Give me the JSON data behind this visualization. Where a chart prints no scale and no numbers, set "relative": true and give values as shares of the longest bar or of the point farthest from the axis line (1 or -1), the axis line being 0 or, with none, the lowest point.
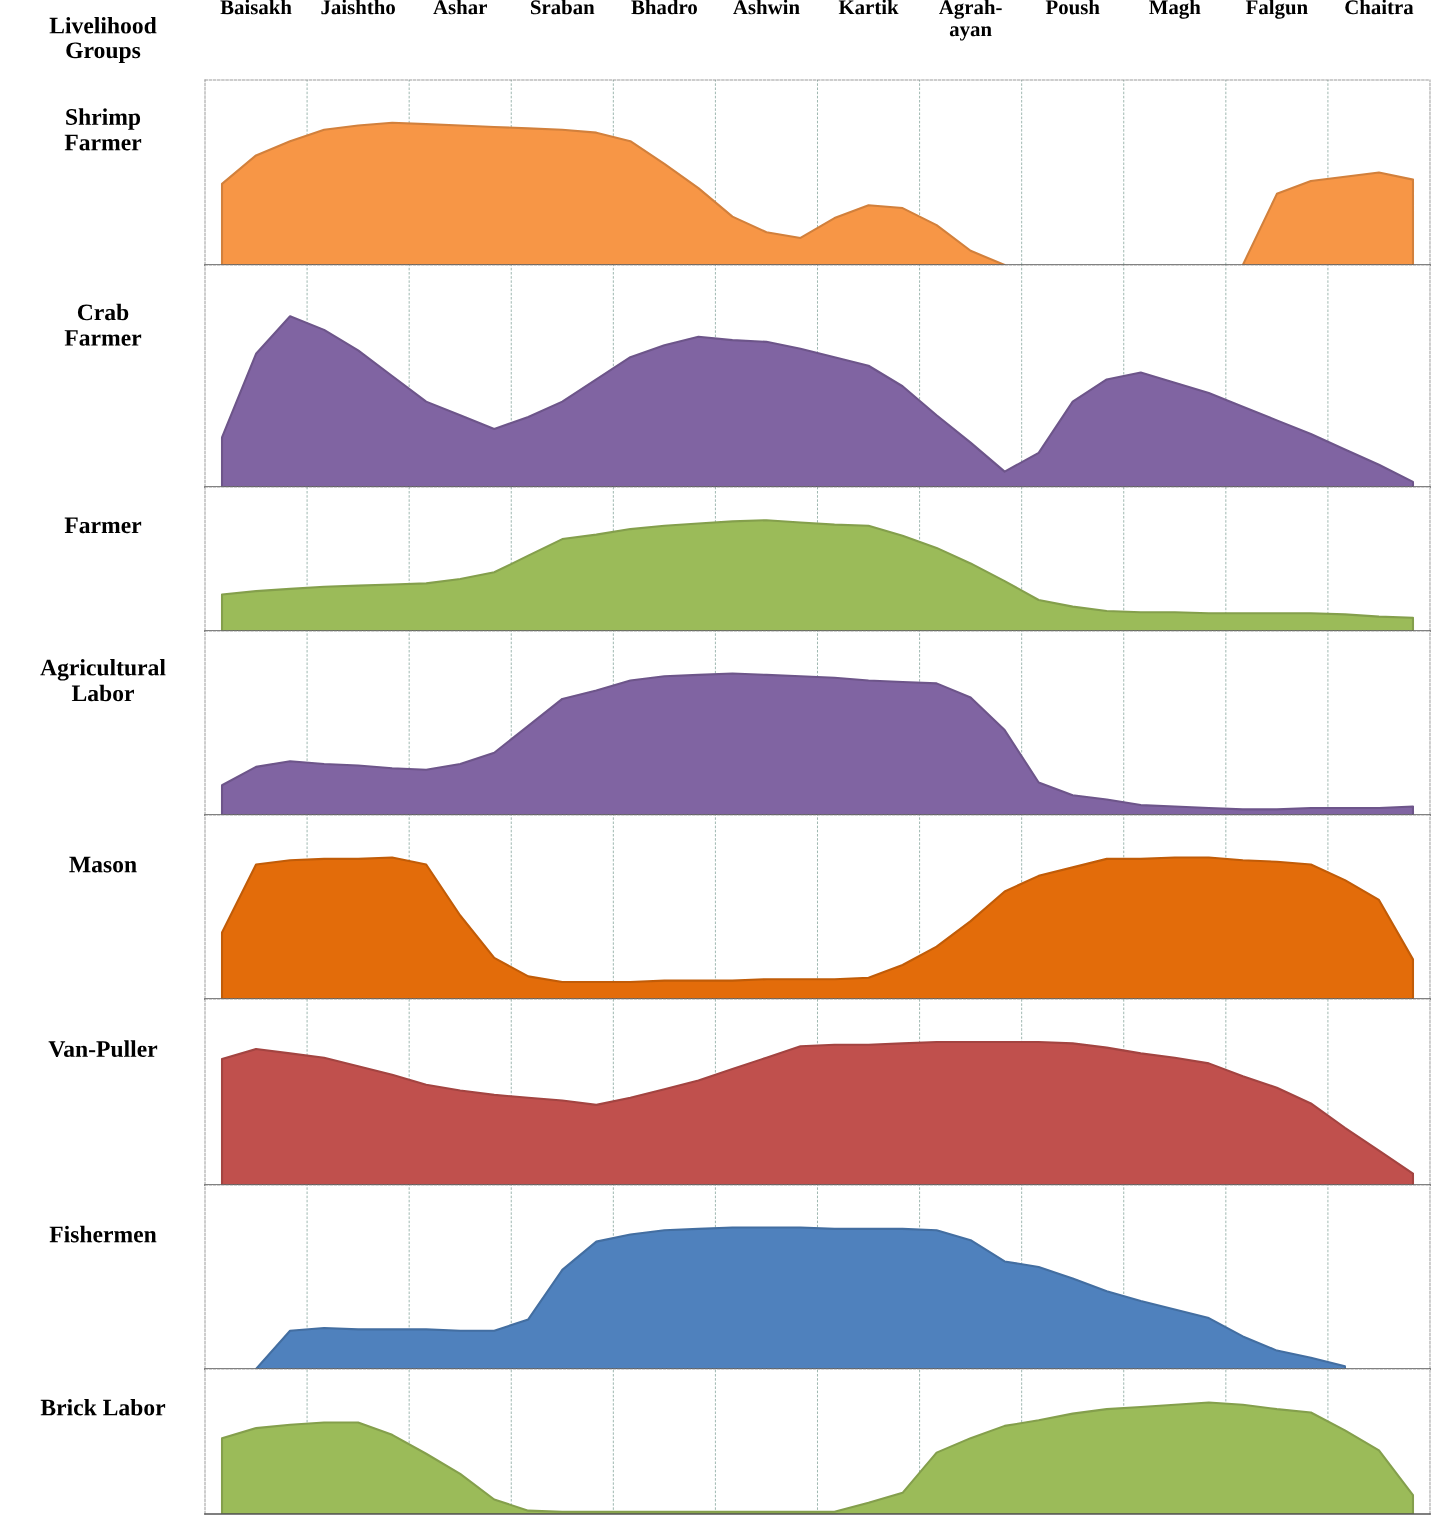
{
  "chart_data": [
    {
      "type": "area",
      "title": "Shrimp\nFarmer",
      "annotations": [
        "Livelihood\nGroups"
      ],
      "relative": true,
      "grid": "x",
      "tick_labels": "x",
      "categories": [
        null,
        "Baisakh",
        null,
        null,
        "Jaishtho",
        null,
        null,
        "Ashar",
        null,
        null,
        "Sraban",
        null,
        null,
        "Bhadro",
        null,
        null,
        "Ashwin",
        null,
        null,
        "Kartik",
        null,
        null,
        "Agrah-\nayan",
        null,
        null,
        "Poush",
        null,
        null,
        "Magh",
        null,
        null,
        "Falgun",
        null,
        null,
        "Chaitra",
        null
      ],
      "series": [
        {
          "color": "#f79646",
          "values": [
            0.57,
            0.77,
            0.87,
            0.95,
            0.98,
            1,
            0.99,
            0.98,
            0.97,
            0.96,
            0.95,
            0.93,
            0.87,
            0.71,
            0.54,
            0.34,
            0.23,
            0.19,
            0.33,
            0.42,
            0.4,
            0.28,
            0.1,
            0,
            null,
            null,
            null,
            null,
            null,
            null,
            0,
            0.5,
            0.59,
            0.62,
            0.65,
            0.6
          ]
        }
      ]
    },
    {
      "type": "area",
      "title": "Crab\nFarmer",
      "relative": true,
      "grid": "x",
      "tick_labels": false,
      "categories": [
        null,
        null,
        null,
        null,
        null,
        null,
        null,
        null,
        null,
        null,
        null,
        null,
        null,
        null,
        null,
        null,
        null,
        null,
        null,
        null,
        null,
        null,
        null,
        null,
        null,
        null,
        null,
        null,
        null,
        null,
        null,
        null,
        null,
        null,
        null,
        null
      ],
      "series": [
        {
          "color": "#8064a2",
          "values": [
            0.29,
            0.78,
            1,
            0.92,
            0.8,
            0.65,
            0.5,
            0.42,
            0.34,
            0.41,
            0.5,
            0.63,
            0.76,
            0.83,
            0.88,
            0.86,
            0.85,
            0.81,
            0.76,
            0.71,
            0.59,
            0.42,
            0.26,
            0.09,
            0.2,
            0.5,
            0.63,
            0.67,
            0.61,
            0.55,
            0.47,
            0.39,
            0.31,
            0.22,
            0.13,
            0.03
          ]
        }
      ]
    },
    {
      "type": "area",
      "title": "Farmer",
      "relative": true,
      "grid": "x",
      "tick_labels": false,
      "categories": [
        null,
        null,
        null,
        null,
        null,
        null,
        null,
        null,
        null,
        null,
        null,
        null,
        null,
        null,
        null,
        null,
        null,
        null,
        null,
        null,
        null,
        null,
        null,
        null,
        null,
        null,
        null,
        null,
        null,
        null,
        null,
        null,
        null,
        null,
        null,
        null
      ],
      "series": [
        {
          "color": "#9bbb59",
          "values": [
            0.33,
            0.36,
            0.38,
            0.4,
            0.41,
            0.42,
            0.43,
            0.47,
            0.53,
            0.68,
            0.83,
            0.87,
            0.92,
            0.95,
            0.97,
            0.99,
            1,
            0.98,
            0.96,
            0.95,
            0.86,
            0.75,
            0.61,
            0.45,
            0.28,
            0.22,
            0.18,
            0.17,
            0.17,
            0.16,
            0.16,
            0.16,
            0.16,
            0.15,
            0.13,
            0.12
          ]
        }
      ]
    },
    {
      "type": "area",
      "title": "Agricultural\nLabor",
      "relative": true,
      "grid": "x",
      "tick_labels": false,
      "categories": [
        null,
        null,
        null,
        null,
        null,
        null,
        null,
        null,
        null,
        null,
        null,
        null,
        null,
        null,
        null,
        null,
        null,
        null,
        null,
        null,
        null,
        null,
        null,
        null,
        null,
        null,
        null,
        null,
        null,
        null,
        null,
        null,
        null,
        null,
        null,
        null
      ],
      "series": [
        {
          "color": "#8064a2",
          "values": [
            0.21,
            0.34,
            0.38,
            0.36,
            0.35,
            0.33,
            0.32,
            0.36,
            0.44,
            0.63,
            0.82,
            0.88,
            0.95,
            0.98,
            0.99,
            1,
            0.99,
            0.98,
            0.97,
            0.95,
            0.94,
            0.93,
            0.83,
            0.6,
            0.23,
            0.14,
            0.11,
            0.07,
            0.06,
            0.05,
            0.04,
            0.04,
            0.05,
            0.05,
            0.05,
            0.06
          ]
        }
      ]
    },
    {
      "type": "area",
      "title": "Mason",
      "relative": true,
      "grid": "x",
      "tick_labels": false,
      "categories": [
        null,
        null,
        null,
        null,
        null,
        null,
        null,
        null,
        null,
        null,
        null,
        null,
        null,
        null,
        null,
        null,
        null,
        null,
        null,
        null,
        null,
        null,
        null,
        null,
        null,
        null,
        null,
        null,
        null,
        null,
        null,
        null,
        null,
        null,
        null,
        null
      ],
      "series": [
        {
          "color": "#e36c0a",
          "values": [
            0.47,
            0.95,
            0.98,
            0.99,
            0.99,
            1,
            0.95,
            0.59,
            0.29,
            0.16,
            0.12,
            0.12,
            0.12,
            0.13,
            0.13,
            0.13,
            0.14,
            0.14,
            0.14,
            0.15,
            0.24,
            0.37,
            0.55,
            0.76,
            0.87,
            0.93,
            0.99,
            0.99,
            1,
            1,
            0.98,
            0.97,
            0.95,
            0.84,
            0.7,
            0.28
          ]
        }
      ]
    },
    {
      "type": "area",
      "title": "Van-Puller",
      "relative": true,
      "grid": "x",
      "tick_labels": false,
      "categories": [
        null,
        null,
        null,
        null,
        null,
        null,
        null,
        null,
        null,
        null,
        null,
        null,
        null,
        null,
        null,
        null,
        null,
        null,
        null,
        null,
        null,
        null,
        null,
        null,
        null,
        null,
        null,
        null,
        null,
        null,
        null,
        null,
        null,
        null,
        null,
        null
      ],
      "series": [
        {
          "color": "#c0504d",
          "values": [
            0.88,
            0.95,
            0.92,
            0.89,
            0.83,
            0.77,
            0.7,
            0.66,
            0.63,
            0.61,
            0.59,
            0.56,
            0.61,
            0.67,
            0.73,
            0.81,
            0.89,
            0.97,
            0.98,
            0.98,
            0.99,
            1,
            1,
            1,
            1,
            0.99,
            0.96,
            0.92,
            0.89,
            0.85,
            0.76,
            0.68,
            0.57,
            0.4,
            0.24,
            0.08
          ]
        }
      ]
    },
    {
      "type": "area",
      "title": "Fishermen",
      "relative": true,
      "grid": "x",
      "tick_labels": false,
      "categories": [
        null,
        null,
        null,
        null,
        null,
        null,
        null,
        null,
        null,
        null,
        null,
        null,
        null,
        null,
        null,
        null,
        null,
        null,
        null,
        null,
        null,
        null,
        null,
        null,
        null,
        null,
        null,
        null,
        null,
        null,
        null,
        null,
        null,
        null,
        null,
        null
      ],
      "series": [
        {
          "color": "#4f81bd",
          "values": [
            null,
            0,
            0.27,
            0.29,
            0.28,
            0.28,
            0.28,
            0.27,
            0.27,
            0.35,
            0.7,
            0.9,
            0.95,
            0.98,
            0.99,
            1,
            1,
            1,
            0.99,
            0.99,
            0.99,
            0.98,
            0.91,
            0.76,
            0.72,
            0.64,
            0.55,
            0.48,
            0.42,
            0.36,
            0.23,
            0.13,
            0.08,
            0.02,
            null,
            null
          ]
        }
      ]
    },
    {
      "type": "area",
      "title": "Brick Labor",
      "relative": true,
      "grid": "x",
      "tick_labels": false,
      "categories": [
        null,
        null,
        null,
        null,
        null,
        null,
        null,
        null,
        null,
        null,
        null,
        null,
        null,
        null,
        null,
        null,
        null,
        null,
        null,
        null,
        null,
        null,
        null,
        null,
        null,
        null,
        null,
        null,
        null,
        null,
        null,
        null,
        null,
        null,
        null,
        null
      ],
      "series": [
        {
          "color": "#9bbb59",
          "values": [
            0.68,
            0.77,
            0.8,
            0.82,
            0.82,
            0.71,
            0.54,
            0.36,
            0.13,
            0.03,
            0.02,
            0.02,
            0.02,
            0.02,
            0.02,
            0.02,
            0.02,
            0.02,
            0.02,
            0.1,
            0.19,
            0.55,
            0.68,
            0.79,
            0.84,
            0.9,
            0.94,
            0.96,
            0.98,
            1,
            0.98,
            0.94,
            0.91,
            0.75,
            0.57,
            0.17
          ]
        }
      ]
    }
  ]
}
